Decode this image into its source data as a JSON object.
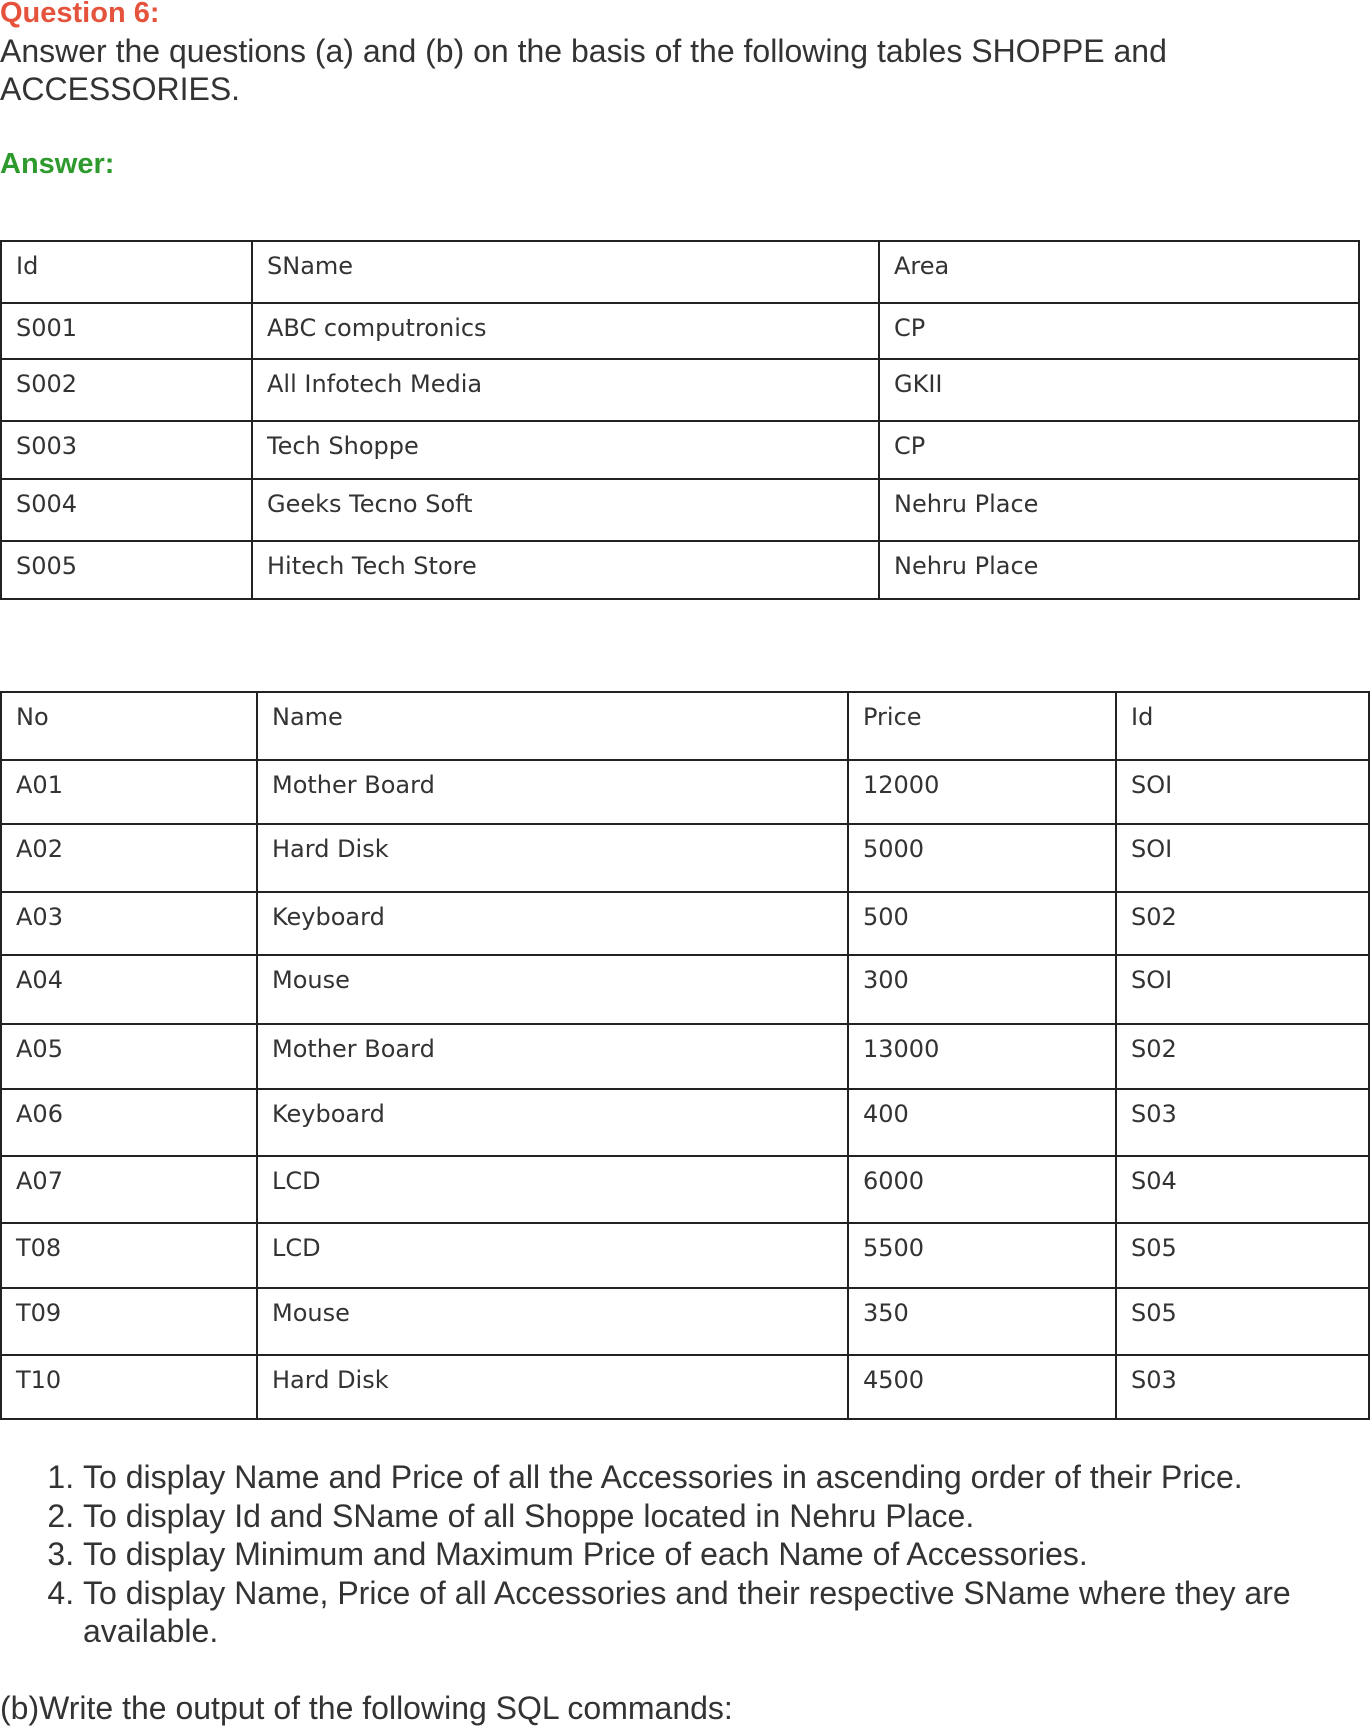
{
  "question_title": "Question 6:",
  "intro": "Answer the questions (a) and (b) on the basis of the following tables SHOPPE and ACCESSORIES.",
  "answer_label": "Answer:",
  "shoppe": {
    "headers": [
      "Id",
      "SName",
      "Area"
    ],
    "rows": [
      [
        "S001",
        "ABC computronics",
        "CP"
      ],
      [
        "S002",
        "All Infotech Media",
        "GKII"
      ],
      [
        "S003",
        "Tech Shoppe",
        "CP"
      ],
      [
        "S004",
        "Geeks Tecno Soft",
        "Nehru Place"
      ],
      [
        "S005",
        "Hitech Tech Store",
        "Nehru Place"
      ]
    ]
  },
  "accessories": {
    "headers": [
      "No",
      "Name",
      "Price",
      "Id"
    ],
    "rows": [
      [
        "A01",
        "Mother Board",
        "12000",
        "SOI"
      ],
      [
        "A02",
        "Hard Disk",
        "5000",
        "SOI"
      ],
      [
        "A03",
        "Keyboard",
        "500",
        "S02"
      ],
      [
        "A04",
        "Mouse",
        "300",
        "SOI"
      ],
      [
        "A05",
        "Mother Board",
        "13000",
        "S02"
      ],
      [
        "A06",
        "Keyboard",
        "400",
        "S03"
      ],
      [
        "A07",
        "LCD",
        "6000",
        "S04"
      ],
      [
        "T08",
        "LCD",
        "5500",
        "S05"
      ],
      [
        "T09",
        "Mouse",
        "350",
        "S05"
      ],
      [
        "T10",
        "Hard Disk",
        "4500",
        "S03"
      ]
    ]
  },
  "questions": [
    "To display Name and Price of all the Accessories in ascending order of their Price.",
    "To display Id and SName of all Shoppe located in Nehru Place.",
    "To display Minimum and Maximum Price of each Name of Accessories.",
    "To display Name, Price of all Accessories and their respective SName where they are available."
  ],
  "part_b": "(b)Write the output of the following SQL commands:"
}
